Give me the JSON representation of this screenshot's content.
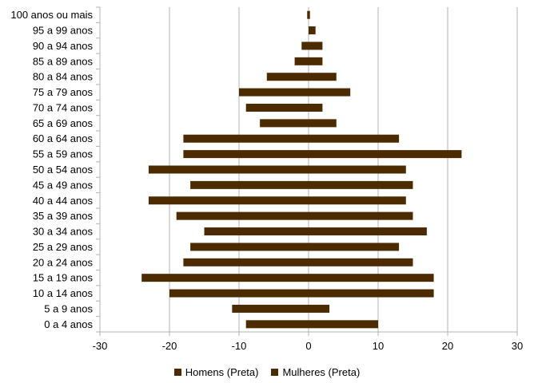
{
  "chart_data": {
    "type": "bar",
    "orientation": "horizontal",
    "categories": [
      "0 a 4 anos",
      "5 a 9 anos",
      "10 a 14 anos",
      "15 a 19 anos",
      "20 a 24 anos",
      "25 a 29 anos",
      "30 a 34 anos",
      "35 a 39 anos",
      "40 a 44 anos",
      "45 a 49 anos",
      "50 a 54 anos",
      "55 a 59 anos",
      "60 a 64 anos",
      "65 a 69 anos",
      "70 a 74 anos",
      "75 a 79 anos",
      "80 a 84 anos",
      "85 a 89 anos",
      "90 a 94 anos",
      "95 a 99 anos",
      "100 anos ou mais"
    ],
    "series": [
      {
        "name": "Homens (Preta)",
        "color": "#4d2b00",
        "values": [
          -9,
          -11,
          -20,
          -24,
          -18,
          -17,
          -15,
          -19,
          -23,
          -17,
          -23,
          -18,
          -18,
          -7,
          -9,
          -10,
          -6,
          -2,
          -1,
          0,
          -0.2
        ]
      },
      {
        "name": "Mulheres (Preta)",
        "color": "#4d2b00",
        "values": [
          10,
          3,
          18,
          18,
          15,
          13,
          17,
          15,
          14,
          15,
          14,
          22,
          13,
          4,
          2,
          6,
          4,
          2,
          2,
          1,
          0.2
        ]
      }
    ],
    "xlim": [
      -30,
      30
    ],
    "xticks": [
      "-30",
      "-20",
      "-10",
      "0",
      "10",
      "20",
      "30"
    ],
    "grid": true,
    "legend_position": "bottom"
  }
}
